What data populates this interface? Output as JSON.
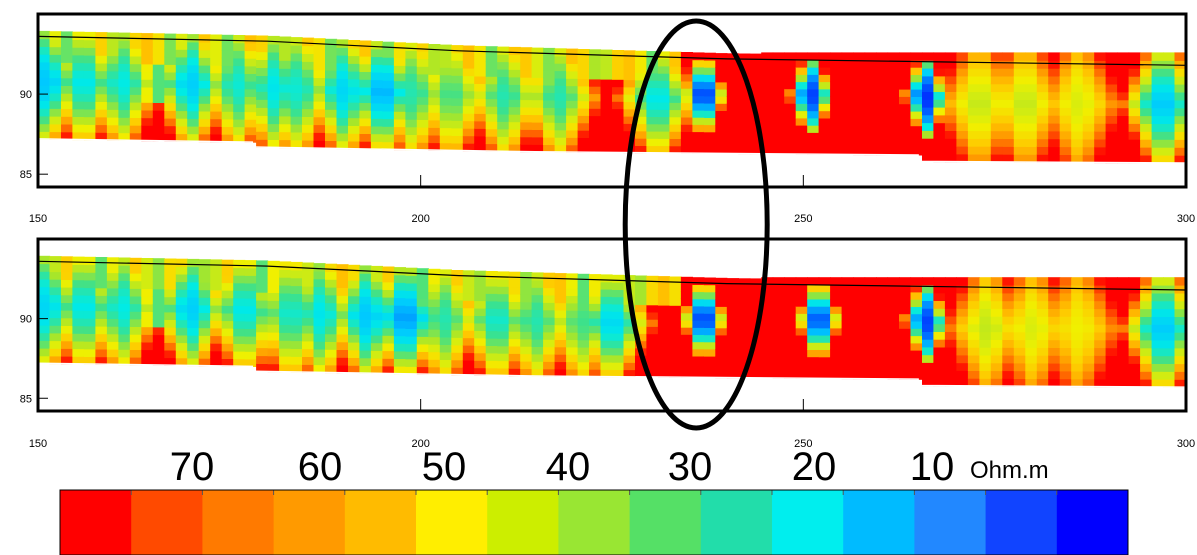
{
  "chart_data": {
    "type": "heatmap",
    "panels": [
      {
        "name": "",
        "x_range": [
          150,
          300
        ],
        "y_range": [
          84.2,
          95.0
        ],
        "x_ticks": [
          150,
          200,
          250,
          300
        ],
        "y_ticks": [
          85,
          90
        ],
        "top_elevation": [
          [
            150,
            93.6
          ],
          [
            180,
            93.3
          ],
          [
            205,
            92.7
          ],
          [
            240,
            92.2
          ],
          [
            270,
            92.0
          ],
          [
            300,
            91.8
          ]
        ],
        "bottom_elevation": [
          [
            150,
            87.2
          ],
          [
            178,
            87.0
          ],
          [
            178,
            86.7
          ],
          [
            215,
            86.4
          ],
          [
            265,
            86.2
          ],
          [
            265,
            85.8
          ],
          [
            300,
            85.7
          ]
        ],
        "red_top_boundary_x": 244,
        "conductive_columns": [
          {
            "x": 151,
            "min_ohm": 22
          },
          {
            "x": 156,
            "min_ohm": 26
          },
          {
            "x": 161,
            "min_ohm": 27
          },
          {
            "x": 170,
            "min_ohm": 23
          },
          {
            "x": 176,
            "min_ohm": 28
          },
          {
            "x": 181,
            "min_ohm": 26
          },
          {
            "x": 184,
            "min_ohm": 28
          },
          {
            "x": 190,
            "min_ohm": 24
          },
          {
            "x": 195,
            "min_ohm": 20
          },
          {
            "x": 199,
            "min_ohm": 30
          },
          {
            "x": 204,
            "min_ohm": 32
          },
          {
            "x": 211,
            "min_ohm": 30
          },
          {
            "x": 218,
            "min_ohm": 30
          },
          {
            "x": 231,
            "min_ohm": 26
          },
          {
            "x": 237,
            "min_ohm": 6
          },
          {
            "x": 251,
            "min_ohm": 8
          },
          {
            "x": 266,
            "min_ohm": 6
          },
          {
            "x": 273,
            "min_ohm": 40
          },
          {
            "x": 279,
            "min_ohm": 40
          },
          {
            "x": 286,
            "min_ohm": 42
          },
          {
            "x": 297,
            "min_ohm": 22
          }
        ]
      },
      {
        "name": "",
        "x_range": [
          150,
          300
        ],
        "y_range": [
          84.2,
          95.0
        ],
        "x_ticks": [
          150,
          200,
          250,
          300
        ],
        "y_ticks": [
          85,
          90
        ],
        "top_elevation": [
          [
            150,
            93.6
          ],
          [
            180,
            93.3
          ],
          [
            205,
            92.7
          ],
          [
            240,
            92.2
          ],
          [
            270,
            92.0
          ],
          [
            300,
            91.8
          ]
        ],
        "bottom_elevation": [
          [
            150,
            87.2
          ],
          [
            178,
            87.0
          ],
          [
            178,
            86.7
          ],
          [
            215,
            86.4
          ],
          [
            265,
            86.2
          ],
          [
            265,
            85.8
          ],
          [
            300,
            85.7
          ]
        ],
        "red_top_boundary_x": 244,
        "conductive_columns": [
          {
            "x": 151,
            "min_ohm": 24
          },
          {
            "x": 156,
            "min_ohm": 26
          },
          {
            "x": 161,
            "min_ohm": 27
          },
          {
            "x": 170,
            "min_ohm": 23
          },
          {
            "x": 177,
            "min_ohm": 26
          },
          {
            "x": 183,
            "min_ohm": 28
          },
          {
            "x": 187,
            "min_ohm": 26
          },
          {
            "x": 193,
            "min_ohm": 22
          },
          {
            "x": 198,
            "min_ohm": 18
          },
          {
            "x": 203,
            "min_ohm": 30
          },
          {
            "x": 210,
            "min_ohm": 28
          },
          {
            "x": 215,
            "min_ohm": 30
          },
          {
            "x": 221,
            "min_ohm": 32
          },
          {
            "x": 225,
            "min_ohm": 24
          },
          {
            "x": 237,
            "min_ohm": 6
          },
          {
            "x": 252,
            "min_ohm": 8
          },
          {
            "x": 266,
            "min_ohm": 8
          },
          {
            "x": 274,
            "min_ohm": 40
          },
          {
            "x": 280,
            "min_ohm": 42
          },
          {
            "x": 286,
            "min_ohm": 44
          },
          {
            "x": 297,
            "min_ohm": 22
          }
        ]
      }
    ],
    "x_tick_labels": [
      "150",
      "200",
      "250",
      "300"
    ],
    "y_tick_labels": [
      "85",
      "90"
    ],
    "colorbar": {
      "labels": [
        "70",
        "60",
        "50",
        "40",
        "30",
        "20",
        "10"
      ],
      "unit": "Ohm.m",
      "colors": [
        "#ff0000",
        "#ff4a00",
        "#ff7a00",
        "#ff9a00",
        "#ffbb00",
        "#ffee00",
        "#ccee00",
        "#99e633",
        "#55e066",
        "#22ddaa",
        "#00eeee",
        "#00bbff",
        "#2288ff",
        "#1144ff",
        "#0000ff"
      ]
    },
    "highlight": {
      "shape": "ellipse",
      "x_center": 236,
      "panels": "both"
    },
    "xlabel": "",
    "ylabel": "",
    "title": "",
    "grid": false
  }
}
